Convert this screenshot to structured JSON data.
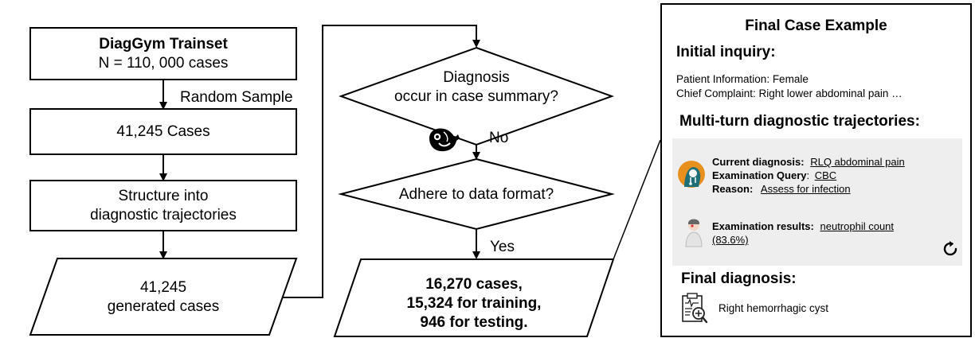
{
  "flow": {
    "trainset_title": "DiagGym Trainset",
    "trainset_count": "N = 110, 000 cases",
    "random_sample": "Random Sample",
    "cases": "41,245 Cases",
    "structure_line1": "Structure into",
    "structure_line2": "diagnostic trajectories",
    "generated_line1": "41,245",
    "generated_line2": "generated cases",
    "decision1_line1": "Diagnosis",
    "decision1_line2": "occur in case summary?",
    "no_label": "No",
    "decision2": "Adhere to data format?",
    "yes_label": "Yes",
    "final_line1": "16,270 cases,",
    "final_line2": "15,324 for training,",
    "final_line3": "946 for testing."
  },
  "panel": {
    "title": "Final Case Example",
    "initial_inquiry": "Initial inquiry:",
    "patient_info": "Patient Information: Female",
    "chief_complaint": "Chief Complaint: Right lower abdominal pain …",
    "multi_turn": "Multi-turn diagnostic trajectories:",
    "current_dx_label": "Current diagnosis:",
    "current_dx_value": "RLQ abdominal pain",
    "exam_query_label": "Examination Query",
    "exam_query_colon": ":",
    "exam_query_value": "CBC",
    "reason_label": "Reason:",
    "reason_value": "Assess for infection",
    "exam_results_label": "Examination results:",
    "exam_results_value1": "neutrophil count",
    "exam_results_value2": "(83.6%)",
    "final_diagnosis": "Final diagnosis:",
    "final_dx_value": "Right hemorrhagic cyst"
  },
  "icons": {
    "model": "whale-logo-icon",
    "doctor": "doctor-avatar-icon",
    "patient": "patient-avatar-icon",
    "repeat": "refresh-icon",
    "report": "clipboard-report-icon"
  },
  "colors": {
    "panel_bg": "#eeeeee",
    "doctor_orange": "#e8901e",
    "doctor_teal": "#1f6f78"
  }
}
